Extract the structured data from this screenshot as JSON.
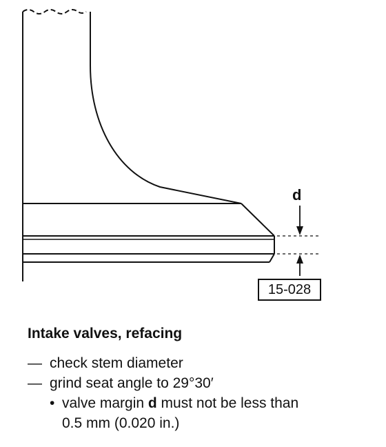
{
  "diagram": {
    "dimension_label": "d",
    "figure_id": "15-028"
  },
  "caption": "Intake valves, refacing",
  "steps": [
    {
      "text": "check stem diameter"
    },
    {
      "text": "grind seat angle to 29°30′"
    }
  ],
  "substeps": [
    {
      "prefix": "valve margin ",
      "bold": "d",
      "suffix": " must not be less than",
      "continuation": "0.5 mm (0.020 in.)"
    }
  ],
  "symbols": {
    "dash": "—",
    "bullet": "•"
  }
}
